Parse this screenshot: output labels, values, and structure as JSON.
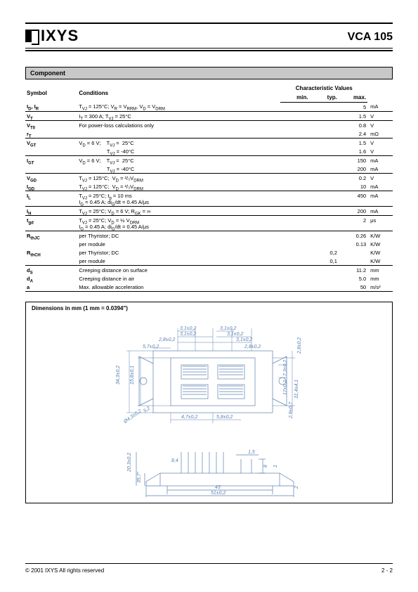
{
  "header": {
    "logo": "IXYS",
    "part": "VCA 105"
  },
  "component": {
    "title": "Component",
    "cols": {
      "symbol": "Symbol",
      "conditions": "Conditions",
      "char": "Characteristic Values",
      "min": "min.",
      "typ": "typ.",
      "max": "max."
    },
    "rows": [
      {
        "sym": "I<sub>D</sub>, I<sub>R</sub>",
        "cond": "T<sub>VJ</sub> = 125°C; V<sub>R</sub> = V<sub>RRM</sub>, V<sub>D</sub> = V<sub>DRM</sub>",
        "min": "",
        "typ": "",
        "max": "5",
        "unit": "mA",
        "sep": true
      },
      {
        "sym": "V<sub>T</sub>",
        "cond": "I<sub>T</sub> = 300 A; T<sub>VJ</sub> = 25°C",
        "min": "",
        "typ": "",
        "max": "1.5",
        "unit": "V",
        "sep": true
      },
      {
        "sym": "V<sub>T0</sub>",
        "cond": "For power-loss calculations only",
        "min": "",
        "typ": "",
        "max": "0.8",
        "unit": "V"
      },
      {
        "sym": "r<sub>T</sub>",
        "cond": "",
        "min": "",
        "typ": "",
        "max": "2.4",
        "unit": "mΩ",
        "sep": true
      },
      {
        "sym": "V<sub>GT</sub>",
        "cond": "V<sub>D</sub> = 6 V;&nbsp;&nbsp;&nbsp;&nbsp;T<sub>VJ</sub> =&nbsp;&nbsp;25°C",
        "min": "",
        "typ": "",
        "max": "1.5",
        "unit": "V"
      },
      {
        "sym": "",
        "cond": "&nbsp;&nbsp;&nbsp;&nbsp;&nbsp;&nbsp;&nbsp;&nbsp;&nbsp;&nbsp;&nbsp;&nbsp;&nbsp;&nbsp;&nbsp;&nbsp;&nbsp;&nbsp;&nbsp;T<sub>VJ</sub> = -40°C",
        "min": "",
        "typ": "",
        "max": "1.6",
        "unit": "V",
        "sep": true
      },
      {
        "sym": "I<sub>GT</sub>",
        "cond": "V<sub>D</sub> = 6 V;&nbsp;&nbsp;&nbsp;&nbsp;T<sub>VJ</sub> =&nbsp;&nbsp;25°C",
        "min": "",
        "typ": "",
        "max": "150",
        "unit": "mA"
      },
      {
        "sym": "",
        "cond": "&nbsp;&nbsp;&nbsp;&nbsp;&nbsp;&nbsp;&nbsp;&nbsp;&nbsp;&nbsp;&nbsp;&nbsp;&nbsp;&nbsp;&nbsp;&nbsp;&nbsp;&nbsp;&nbsp;T<sub>VJ</sub> = -40°C",
        "min": "",
        "typ": "",
        "max": "200",
        "unit": "mA",
        "sep": true
      },
      {
        "sym": "V<sub>GD</sub>",
        "cond": "T<sub>VJ</sub> = 125°C;&nbsp;&nbsp;V<sub>D</sub> = ²/₃V<sub>DRM</sub>",
        "min": "",
        "typ": "",
        "max": "0.2",
        "unit": "V"
      },
      {
        "sym": "I<sub>GD</sub>",
        "cond": "T<sub>VJ</sub> = 125°C;&nbsp;&nbsp;V<sub>D</sub> = ²/₃V<sub>DRM</sub>",
        "min": "",
        "typ": "",
        "max": "10",
        "unit": "mA",
        "sep": true
      },
      {
        "sym": "I<sub>L</sub>",
        "cond": "T<sub>VJ</sub> = 25°C; t<sub>p</sub> = 10 ms<br>I<sub>G</sub> = 0.45 A; di<sub>G</sub>/dt = 0.45 A/μs",
        "min": "",
        "typ": "",
        "max": "450",
        "unit": "mA",
        "sep": true
      },
      {
        "sym": "I<sub>H</sub>",
        "cond": "T<sub>VJ</sub> = 25°C; V<sub>D</sub> = 6 V; R<sub>GK</sub> = ∞",
        "min": "",
        "typ": "",
        "max": "200",
        "unit": "mA",
        "sep": true
      },
      {
        "sym": "t<sub>gd</sub>",
        "cond": "T<sub>VJ</sub> = 25°C; V<sub>D</sub> = ½ V<sub>DRM</sub><br>I<sub>G</sub> = 0.45 A; di<sub>G</sub>/dt = 0.45 A/μs",
        "min": "",
        "typ": "",
        "max": "2",
        "unit": "μs",
        "sep": true
      },
      {
        "sym": "R<sub>thJC</sub>",
        "cond": "per Thyristor; DC",
        "min": "",
        "typ": "",
        "max": "0.26",
        "unit": "K/W"
      },
      {
        "sym": "",
        "cond": "per module",
        "min": "",
        "typ": "",
        "max": "0.13",
        "unit": "K/W"
      },
      {
        "sym": "R<sub>thCH</sub>",
        "cond": "per Thyristor; DC",
        "min": "",
        "typ": "0,2",
        "max": "",
        "unit": "K/W"
      },
      {
        "sym": "",
        "cond": "per module",
        "min": "",
        "typ": "0,1",
        "max": "",
        "unit": "K/W",
        "sep": true
      },
      {
        "sym": "d<sub>S</sub>",
        "cond": "Creeping distance on surface",
        "min": "",
        "typ": "",
        "max": "11.2",
        "unit": "mm"
      },
      {
        "sym": "d<sub>A</sub>",
        "cond": "Creeping distance in air",
        "min": "",
        "typ": "",
        "max": "5.0",
        "unit": "mm"
      },
      {
        "sym": "a",
        "cond": "Max. allowable acceleration",
        "min": "",
        "typ": "",
        "max": "50",
        "unit": "m/s²",
        "sep": true
      }
    ]
  },
  "dimensions": {
    "title": "Dimensions in mm (1 mm = 0.0394\")",
    "drawing_color": "#5a7fb0"
  },
  "footer": {
    "copyright": "© 2001 IXYS All rights reserved",
    "page": "2 - 2"
  },
  "colors": {
    "section_bg": "#c8c8c8",
    "text": "#000000",
    "drawing": "#5a7fb0"
  }
}
